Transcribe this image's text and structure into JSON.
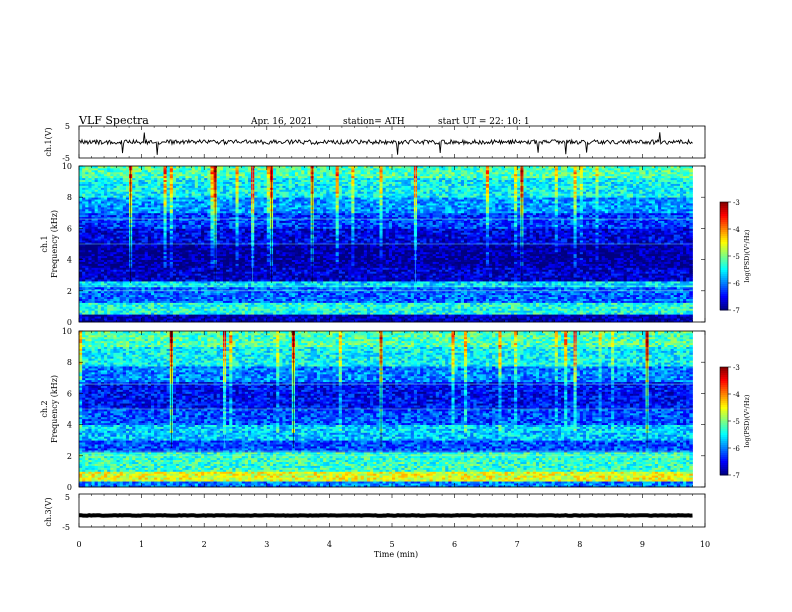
{
  "header": {
    "title": "VLF  Spectra",
    "date": "Apr. 16, 2021",
    "station": "station= ATH",
    "start": "start  UT  =    22: 10: 1"
  },
  "chart_data": [
    {
      "type": "line",
      "name": "ch1-waveform",
      "ylabel": "ch.1(V)",
      "ylim": [
        -5,
        5
      ],
      "yticks": [
        "5",
        "-5"
      ],
      "x_range_min": [
        0,
        10
      ],
      "trace_level": 0.0,
      "trace_amplitude": 1.4
    },
    {
      "type": "heatmap",
      "name": "ch1-spectrogram",
      "ylabel": "ch.1\nFrequency (kHz)",
      "ylim": [
        0,
        10
      ],
      "yticks": [
        "0",
        "2",
        "4",
        "6",
        "8",
        "10"
      ],
      "data_end_min": 9.8,
      "bands": [
        {
          "f": [
            9.2,
            10.0
          ],
          "level": -5.2
        },
        {
          "f": [
            8.0,
            9.2
          ],
          "level": -5.5
        },
        {
          "f": [
            7.0,
            8.0
          ],
          "level": -5.9
        },
        {
          "f": [
            6.0,
            7.0
          ],
          "level": -6.3
        },
        {
          "f": [
            5.0,
            6.0
          ],
          "level": -6.6
        },
        {
          "f": [
            3.5,
            5.0
          ],
          "level": -6.9
        },
        {
          "f": [
            2.6,
            3.5
          ],
          "level": -6.7
        },
        {
          "f": [
            2.2,
            2.6
          ],
          "level": -5.6
        },
        {
          "f": [
            1.2,
            2.2
          ],
          "level": -6.1
        },
        {
          "f": [
            0.5,
            1.2
          ],
          "level": -5.4
        },
        {
          "f": [
            0.0,
            0.5
          ],
          "level": -6.8
        }
      ],
      "colorbar": {
        "label": "log(PSD)(V²/Hz)",
        "range": [
          -7,
          -3
        ],
        "ticks": [
          "-3",
          "-4",
          "-5",
          "-6",
          "-7"
        ]
      }
    },
    {
      "type": "heatmap",
      "name": "ch2-spectrogram",
      "ylabel": "ch.2\nFrequency (kHz)",
      "ylim": [
        0,
        10
      ],
      "yticks": [
        "0",
        "2",
        "4",
        "6",
        "8",
        "10"
      ],
      "data_end_min": 9.8,
      "bands": [
        {
          "f": [
            9.0,
            10.0
          ],
          "level": -5.2
        },
        {
          "f": [
            7.8,
            9.0
          ],
          "level": -5.5
        },
        {
          "f": [
            6.8,
            7.8
          ],
          "level": -6.0
        },
        {
          "f": [
            5.0,
            6.8
          ],
          "level": -6.5
        },
        {
          "f": [
            4.0,
            5.0
          ],
          "level": -6.2
        },
        {
          "f": [
            3.0,
            4.0
          ],
          "level": -5.7
        },
        {
          "f": [
            2.3,
            3.0
          ],
          "level": -6.2
        },
        {
          "f": [
            1.0,
            2.3
          ],
          "level": -5.3
        },
        {
          "f": [
            0.4,
            1.0
          ],
          "level": -4.6
        },
        {
          "f": [
            0.0,
            0.4
          ],
          "level": -6.0
        }
      ],
      "colorbar": {
        "label": "log(PSD)(V²/Hz)",
        "range": [
          -7,
          -3
        ],
        "ticks": [
          "-3",
          "-4",
          "-5",
          "-6",
          "-7"
        ]
      }
    },
    {
      "type": "line",
      "name": "ch3-waveform",
      "ylabel": "ch.3(V)",
      "ylim": [
        -5,
        5
      ],
      "yticks": [
        "5",
        "-5"
      ],
      "trace_level": -1.5,
      "trace_amplitude": 0.15
    }
  ],
  "xaxis": {
    "label": "Time  (min)",
    "range": [
      0,
      10
    ],
    "ticks": [
      "0",
      "1",
      "2",
      "3",
      "4",
      "5",
      "6",
      "7",
      "8",
      "9",
      "10"
    ]
  }
}
